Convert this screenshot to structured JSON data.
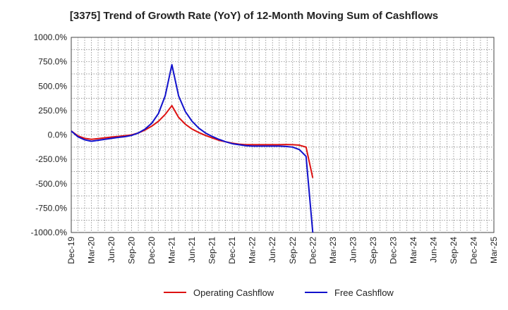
{
  "title": "[3375]  Trend of Growth Rate (YoY) of 12-Month Moving Sum of Cashflows",
  "chart_data": {
    "type": "line",
    "title": "[3375]  Trend of Growth Rate (YoY) of 12-Month Moving Sum of Cashflows",
    "ylim": [
      -1000,
      1000
    ],
    "yticks": [
      1000,
      750,
      500,
      250,
      0,
      -250,
      -500,
      -750,
      -1000
    ],
    "ytick_labels": [
      "1000.0%",
      "750.0%",
      "500.0%",
      "250.0%",
      "0.0%",
      "-250.0%",
      "-500.0%",
      "-750.0%",
      "-1000.0%"
    ],
    "xticks": [
      "Dec-19",
      "Mar-20",
      "Jun-20",
      "Sep-20",
      "Dec-20",
      "Mar-21",
      "Jun-21",
      "Sep-21",
      "Dec-21",
      "Mar-22",
      "Jun-22",
      "Sep-22",
      "Dec-22",
      "Mar-23",
      "Jun-23",
      "Sep-23",
      "Dec-23",
      "Mar-24",
      "Jun-24",
      "Sep-24",
      "Dec-24",
      "Mar-25"
    ],
    "grid": true,
    "legend_position": "bottom",
    "series": [
      {
        "name": "Operating Cashflow",
        "color": "#dd1111",
        "values": [
          40,
          -10,
          -35,
          -45,
          -38,
          -30,
          -22,
          -15,
          -8,
          0,
          20,
          50,
          90,
          140,
          210,
          300,
          180,
          110,
          60,
          25,
          -5,
          -30,
          -55,
          -70,
          -85,
          -95,
          -100,
          -100,
          -100,
          -100,
          -100,
          -100,
          -98,
          -100,
          -105,
          -125,
          -440
        ]
      },
      {
        "name": "Free Cashflow",
        "color": "#1111cc",
        "values": [
          40,
          -20,
          -50,
          -65,
          -55,
          -45,
          -35,
          -25,
          -18,
          -5,
          20,
          60,
          120,
          220,
          400,
          720,
          400,
          240,
          140,
          70,
          20,
          -15,
          -45,
          -70,
          -90,
          -100,
          -110,
          -115,
          -115,
          -115,
          -115,
          -115,
          -118,
          -125,
          -150,
          -220,
          -1000
        ]
      }
    ]
  }
}
